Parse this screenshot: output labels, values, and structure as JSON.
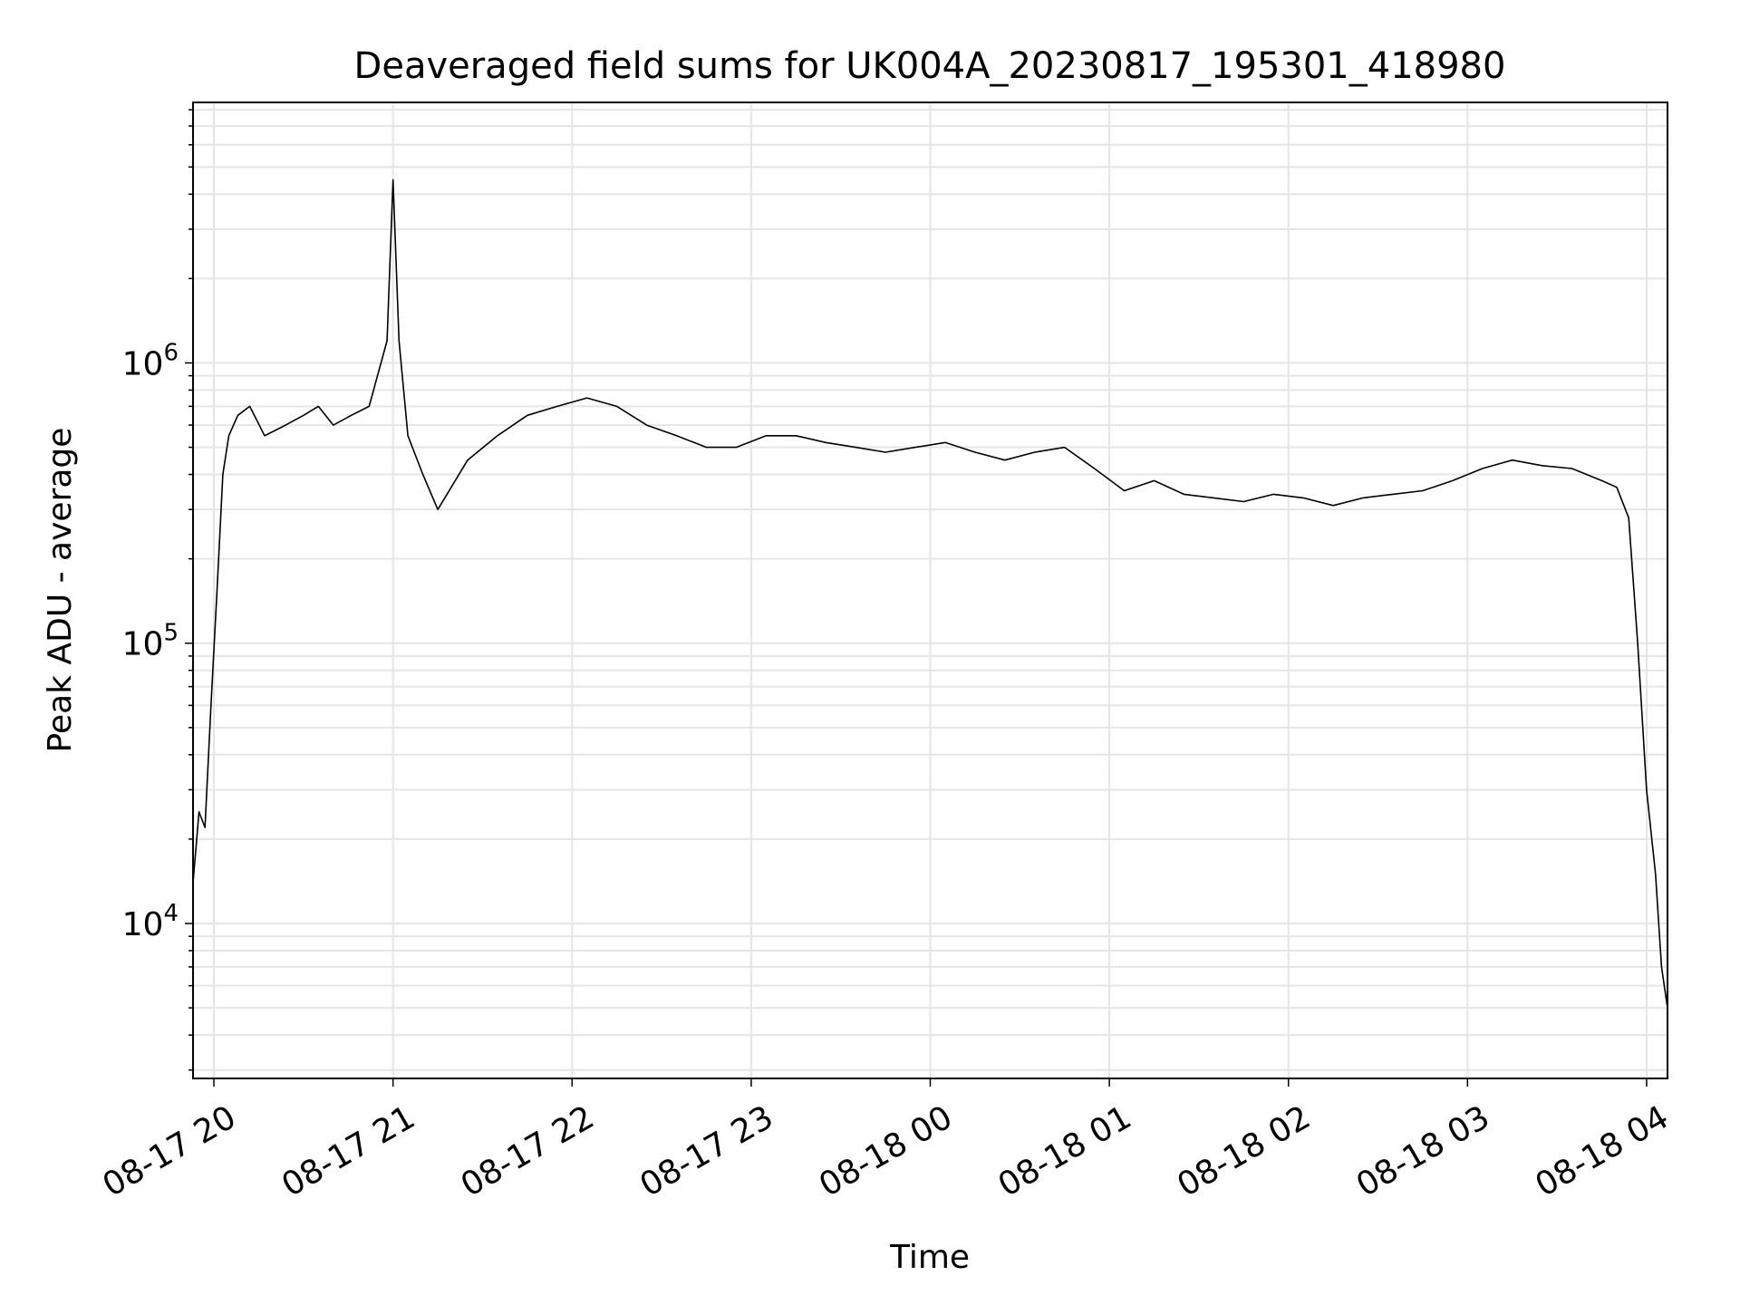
{
  "chart_data": {
    "type": "line",
    "title": "Deaveraged field sums for UK004A_20230817_195301_418980",
    "xlabel": "Time",
    "ylabel": "Peak ADU - average",
    "yscale": "log",
    "ylim": [
      2800,
      8500000
    ],
    "xlim": [
      "2023-08-17 19:53",
      "2023-08-18 04:07"
    ],
    "grid": true,
    "line_color": "#000000",
    "grid_color": "#e5e5e5",
    "x_ticks": [
      {
        "value": "2023-08-17 20:00",
        "label": "08-17 20"
      },
      {
        "value": "2023-08-17 21:00",
        "label": "08-17 21"
      },
      {
        "value": "2023-08-17 22:00",
        "label": "08-17 22"
      },
      {
        "value": "2023-08-17 23:00",
        "label": "08-17 23"
      },
      {
        "value": "2023-08-18 00:00",
        "label": "08-18 00"
      },
      {
        "value": "2023-08-18 01:00",
        "label": "08-18 01"
      },
      {
        "value": "2023-08-18 02:00",
        "label": "08-18 02"
      },
      {
        "value": "2023-08-18 03:00",
        "label": "08-18 03"
      },
      {
        "value": "2023-08-18 04:00",
        "label": "08-18 04"
      }
    ],
    "y_ticks": [
      {
        "value": 10000,
        "base": "10",
        "exp": "4"
      },
      {
        "value": 100000,
        "base": "10",
        "exp": "5"
      },
      {
        "value": 1000000,
        "base": "10",
        "exp": "6"
      }
    ],
    "series": [
      {
        "x": [
          "2023-08-17 19:53",
          "2023-08-17 19:55",
          "2023-08-17 19:57",
          "2023-08-17 19:59",
          "2023-08-17 20:01",
          "2023-08-17 20:03",
          "2023-08-17 20:05",
          "2023-08-17 20:08",
          "2023-08-17 20:12",
          "2023-08-17 20:17",
          "2023-08-17 20:24",
          "2023-08-17 20:30",
          "2023-08-17 20:35",
          "2023-08-17 20:40",
          "2023-08-17 20:46",
          "2023-08-17 20:52",
          "2023-08-17 20:58",
          "2023-08-17 21:00",
          "2023-08-17 21:02",
          "2023-08-17 21:05",
          "2023-08-17 21:10",
          "2023-08-17 21:15",
          "2023-08-17 21:25",
          "2023-08-17 21:35",
          "2023-08-17 21:45",
          "2023-08-17 21:55",
          "2023-08-17 22:05",
          "2023-08-17 22:15",
          "2023-08-17 22:25",
          "2023-08-17 22:35",
          "2023-08-17 22:45",
          "2023-08-17 22:55",
          "2023-08-17 23:05",
          "2023-08-17 23:15",
          "2023-08-17 23:25",
          "2023-08-17 23:35",
          "2023-08-17 23:45",
          "2023-08-17 23:55",
          "2023-08-18 00:05",
          "2023-08-18 00:15",
          "2023-08-18 00:25",
          "2023-08-18 00:35",
          "2023-08-18 00:45",
          "2023-08-18 00:55",
          "2023-08-18 01:05",
          "2023-08-18 01:15",
          "2023-08-18 01:25",
          "2023-08-18 01:35",
          "2023-08-18 01:45",
          "2023-08-18 01:55",
          "2023-08-18 02:05",
          "2023-08-18 02:15",
          "2023-08-18 02:25",
          "2023-08-18 02:35",
          "2023-08-18 02:45",
          "2023-08-18 02:55",
          "2023-08-18 03:05",
          "2023-08-18 03:15",
          "2023-08-18 03:25",
          "2023-08-18 03:35",
          "2023-08-18 03:45",
          "2023-08-18 03:50",
          "2023-08-18 03:54",
          "2023-08-18 03:57",
          "2023-08-18 04:00",
          "2023-08-18 04:03",
          "2023-08-18 04:05",
          "2023-08-18 04:07"
        ],
        "y": [
          14000,
          25000,
          22000,
          60000,
          150000,
          400000,
          550000,
          650000,
          700000,
          550000,
          600000,
          650000,
          700000,
          600000,
          650000,
          700000,
          1200000,
          4500000,
          1200000,
          550000,
          400000,
          300000,
          450000,
          550000,
          650000,
          700000,
          750000,
          700000,
          600000,
          550000,
          500000,
          500000,
          550000,
          550000,
          520000,
          500000,
          480000,
          500000,
          520000,
          480000,
          450000,
          480000,
          500000,
          420000,
          350000,
          380000,
          340000,
          330000,
          320000,
          340000,
          330000,
          310000,
          330000,
          340000,
          350000,
          380000,
          420000,
          450000,
          430000,
          420000,
          380000,
          360000,
          280000,
          100000,
          30000,
          15000,
          7000,
          5000
        ]
      }
    ]
  }
}
